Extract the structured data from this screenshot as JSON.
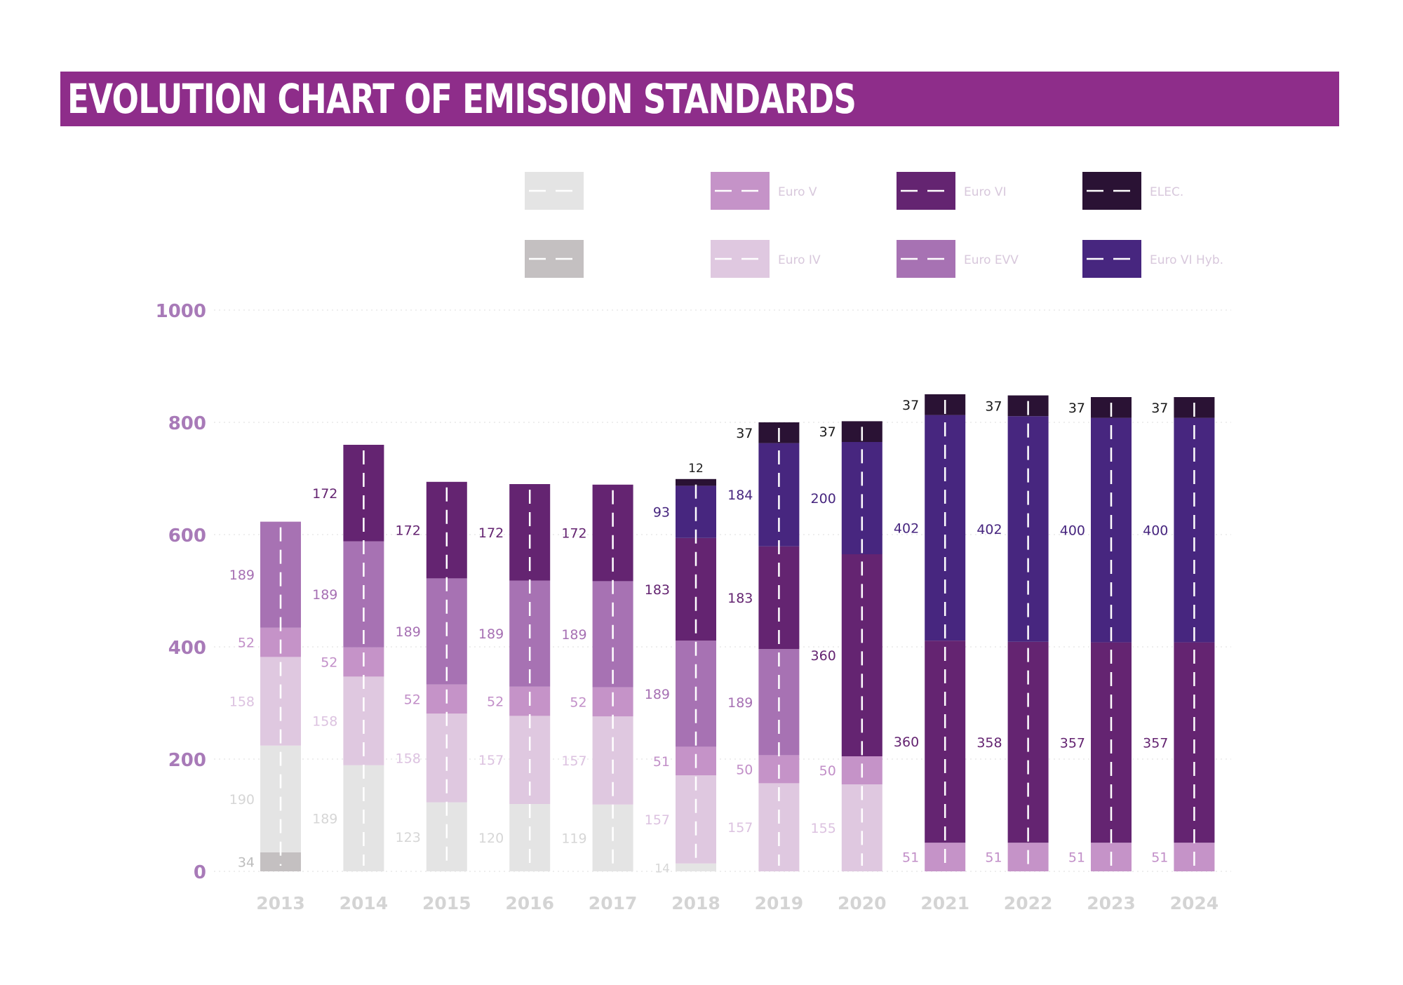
{
  "title": "EVOLUTION CHART OF EMISSION STANDARDS",
  "colors": {
    "title_bg": "#8e2d8a",
    "axis_label": "#a87ab8",
    "year_label": "#d4d4d4",
    "gridline": "#e8e8e8",
    "dash": "#ffffff"
  },
  "chart_data": {
    "type": "bar",
    "stacked": true,
    "ylim": [
      0,
      1000
    ],
    "yticks": [
      0,
      200,
      400,
      600,
      800,
      1000
    ],
    "grid": true,
    "legend_position": "top",
    "categories": [
      "2013",
      "2014",
      "2015",
      "2016",
      "2017",
      "2018",
      "2019",
      "2020",
      "2021",
      "2022",
      "2023",
      "2024"
    ],
    "series": [
      {
        "key": "s_dark_grey",
        "name": "",
        "color": "#c4c0c1",
        "label_color": "#bdbdbd",
        "values": [
          34,
          null,
          null,
          null,
          null,
          null,
          null,
          null,
          null,
          null,
          null,
          null
        ]
      },
      {
        "key": "s_light_grey",
        "name": "",
        "color": "#e4e4e4",
        "label_color": "#d6d6d6",
        "values": [
          190,
          189,
          123,
          120,
          119,
          14,
          null,
          null,
          null,
          null,
          null,
          null
        ]
      },
      {
        "key": "s_euro4",
        "name": "Euro IV",
        "color": "#dfc8e0",
        "label_color": "#dcc2e0",
        "values": [
          158,
          158,
          158,
          157,
          157,
          157,
          157,
          155,
          null,
          null,
          null,
          null
        ]
      },
      {
        "key": "s_euro5",
        "name": "Euro V",
        "color": "#c593c8",
        "label_color": "#c28fc8",
        "values": [
          52,
          52,
          52,
          52,
          52,
          51,
          50,
          50,
          51,
          51,
          51,
          51
        ]
      },
      {
        "key": "s_eev",
        "name": "Euro EVV",
        "color": "#a772b3",
        "label_color": "#a670b3",
        "values": [
          189,
          189,
          189,
          189,
          189,
          189,
          189,
          null,
          null,
          null,
          null,
          null
        ]
      },
      {
        "key": "s_euro6",
        "name": "Euro VI",
        "color": "#642471",
        "label_color": "#642471",
        "values": [
          null,
          172,
          172,
          172,
          172,
          183,
          183,
          360,
          360,
          358,
          357,
          357
        ]
      },
      {
        "key": "s_hyb",
        "name": "Euro VI Hyb.",
        "color": "#47267f",
        "label_color": "#47267f",
        "values": [
          null,
          null,
          null,
          null,
          null,
          93,
          184,
          200,
          402,
          402,
          400,
          400
        ]
      },
      {
        "key": "s_elec",
        "name": "ELEC.",
        "color": "#2a1234",
        "label_color": "#1a1a1a",
        "values": [
          null,
          null,
          null,
          null,
          null,
          12,
          37,
          37,
          37,
          37,
          37,
          37
        ]
      }
    ]
  },
  "legend": [
    {
      "series_key": "s_light_grey",
      "label": ""
    },
    {
      "series_key": "s_dark_grey",
      "label": ""
    },
    {
      "series_key": "s_euro5",
      "label": "Euro V"
    },
    {
      "series_key": "s_euro4",
      "label": "Euro IV"
    },
    {
      "series_key": "s_euro6",
      "label": "Euro VI"
    },
    {
      "series_key": "s_eev",
      "label": "Euro EVV"
    },
    {
      "series_key": "s_elec",
      "label": "ELEC."
    },
    {
      "series_key": "s_hyb",
      "label": "Euro VI Hyb."
    }
  ]
}
